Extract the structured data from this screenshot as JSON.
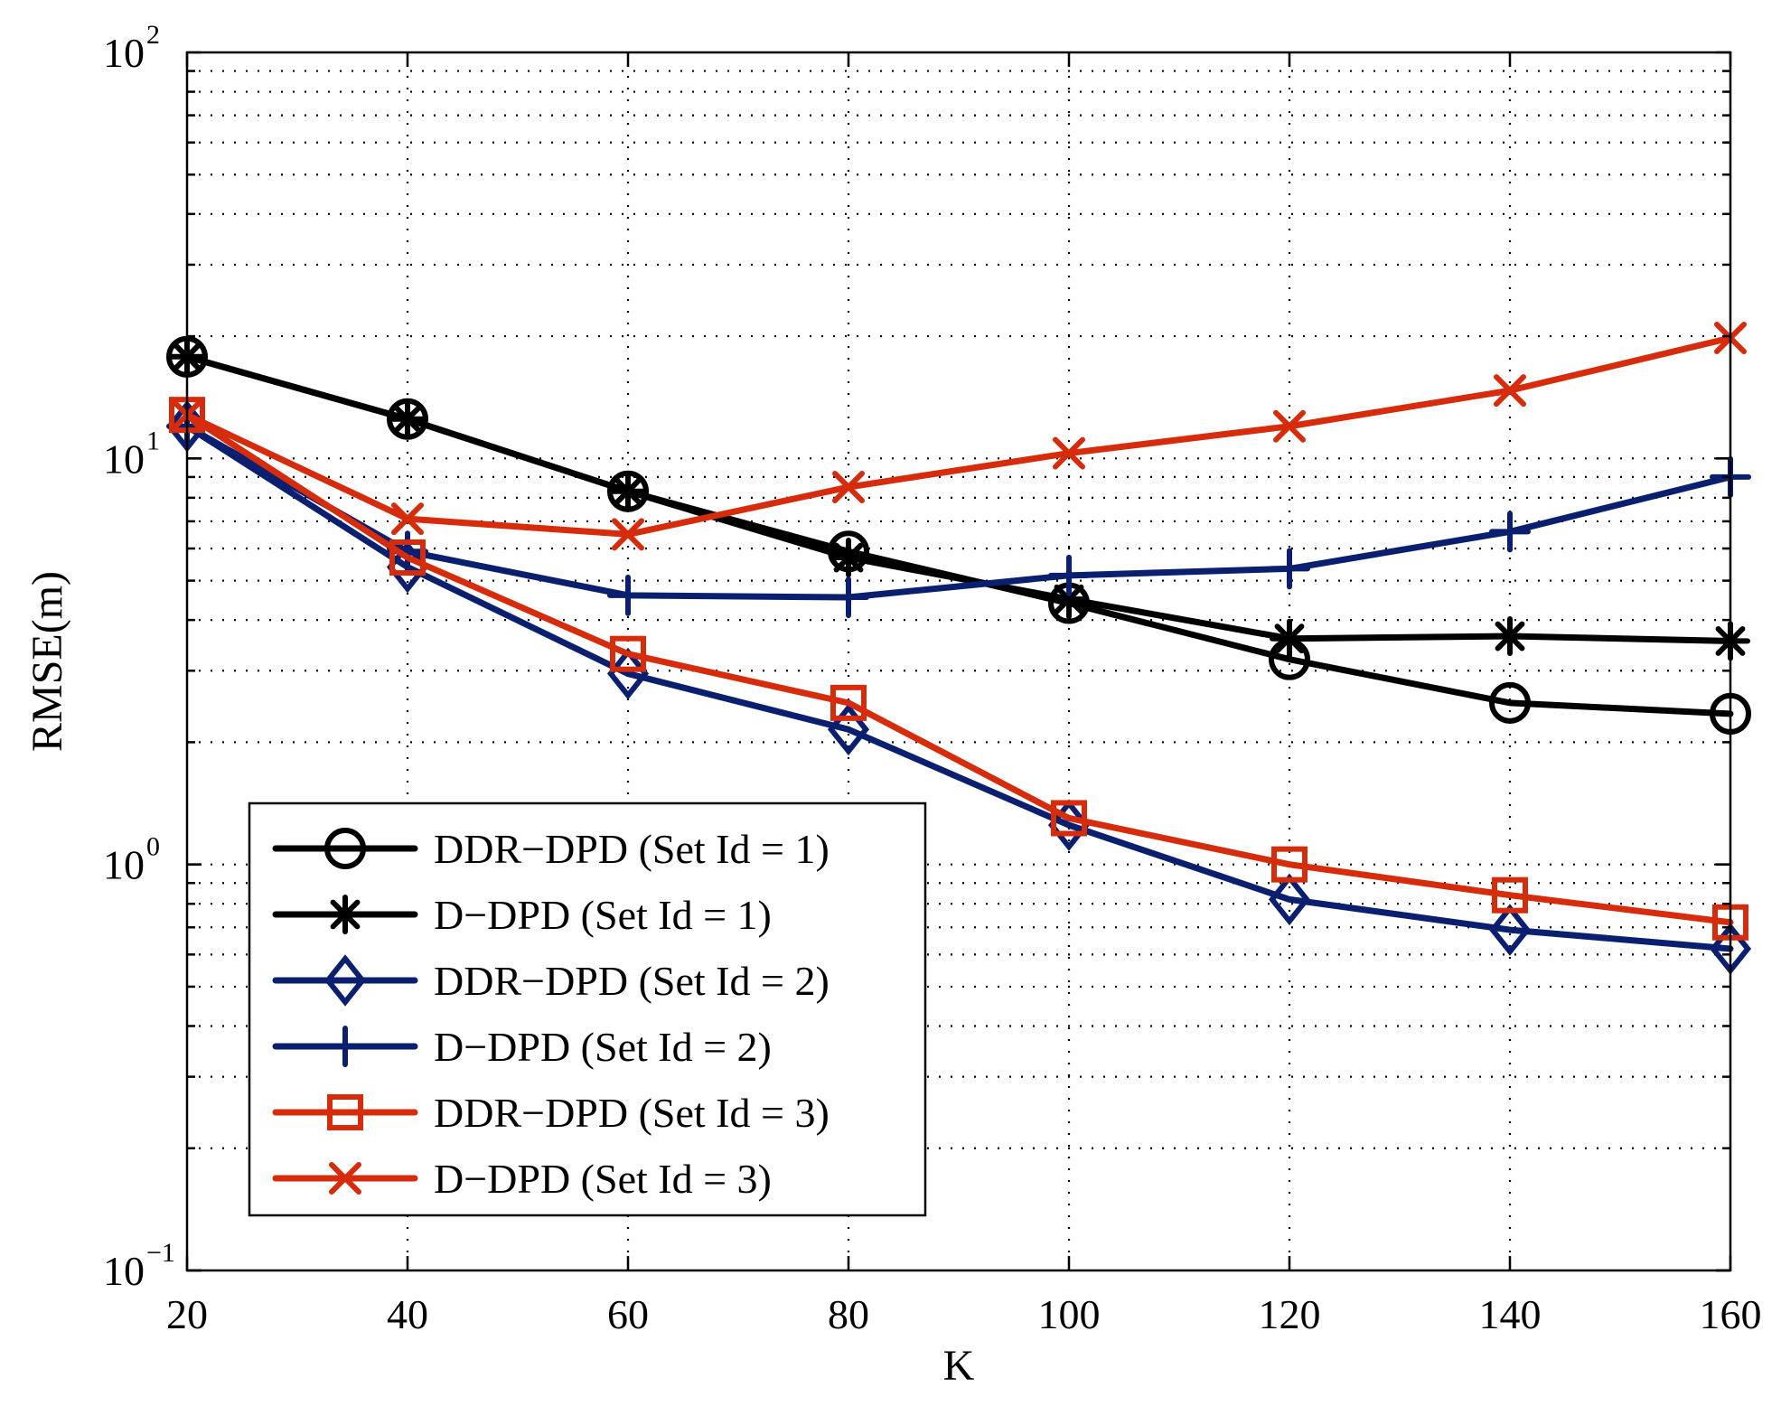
{
  "chart_data": {
    "type": "line",
    "title": "",
    "xlabel": "K",
    "ylabel": "RMSE(m)",
    "xlim": [
      20,
      160
    ],
    "ylim": [
      0.1,
      100
    ],
    "yscale": "log",
    "grid": true,
    "legend_position": "bottom-left",
    "x_ticks": [
      20,
      40,
      60,
      80,
      100,
      120,
      140,
      160
    ],
    "x_tick_labels": [
      "20",
      "40",
      "60",
      "80",
      "100",
      "120",
      "140",
      "160"
    ],
    "y_ticks": [
      0.1,
      1,
      10,
      100
    ],
    "y_tick_labels": [
      {
        "base": "10",
        "exp": "−1"
      },
      {
        "base": "10",
        "exp": "0"
      },
      {
        "base": "10",
        "exp": "1"
      },
      {
        "base": "10",
        "exp": "2"
      }
    ],
    "x": [
      20,
      40,
      60,
      80,
      100,
      120,
      140,
      160
    ],
    "series": [
      {
        "name": "DDR−DPD (Set Id = 1)",
        "color": "#000000",
        "marker": "circle",
        "values": [
          17.8,
          12.5,
          8.3,
          5.9,
          4.4,
          3.2,
          2.5,
          2.35
        ]
      },
      {
        "name": "D−DPD (Set Id = 1)",
        "color": "#000000",
        "marker": "asterisk",
        "values": [
          17.8,
          12.5,
          8.3,
          5.7,
          4.5,
          3.6,
          3.65,
          3.55
        ]
      },
      {
        "name": "DDR−DPD (Set Id = 2)",
        "color": "#0b1f70",
        "marker": "diamond",
        "values": [
          12.0,
          5.4,
          2.95,
          2.15,
          1.25,
          0.82,
          0.69,
          0.62
        ]
      },
      {
        "name": "D−DPD (Set Id = 2)",
        "color": "#0b1f70",
        "marker": "plus",
        "values": [
          12.0,
          5.9,
          4.6,
          4.55,
          5.15,
          5.35,
          6.6,
          9.0
        ]
      },
      {
        "name": "DDR−DPD (Set Id = 3)",
        "color": "#d62c0c",
        "marker": "square",
        "values": [
          12.8,
          5.7,
          3.3,
          2.5,
          1.3,
          1.0,
          0.84,
          0.72
        ]
      },
      {
        "name": "D−DPD (Set Id = 3)",
        "color": "#d62c0c",
        "marker": "x",
        "values": [
          12.8,
          7.1,
          6.5,
          8.5,
          10.3,
          12.0,
          14.7,
          19.8
        ]
      }
    ]
  }
}
